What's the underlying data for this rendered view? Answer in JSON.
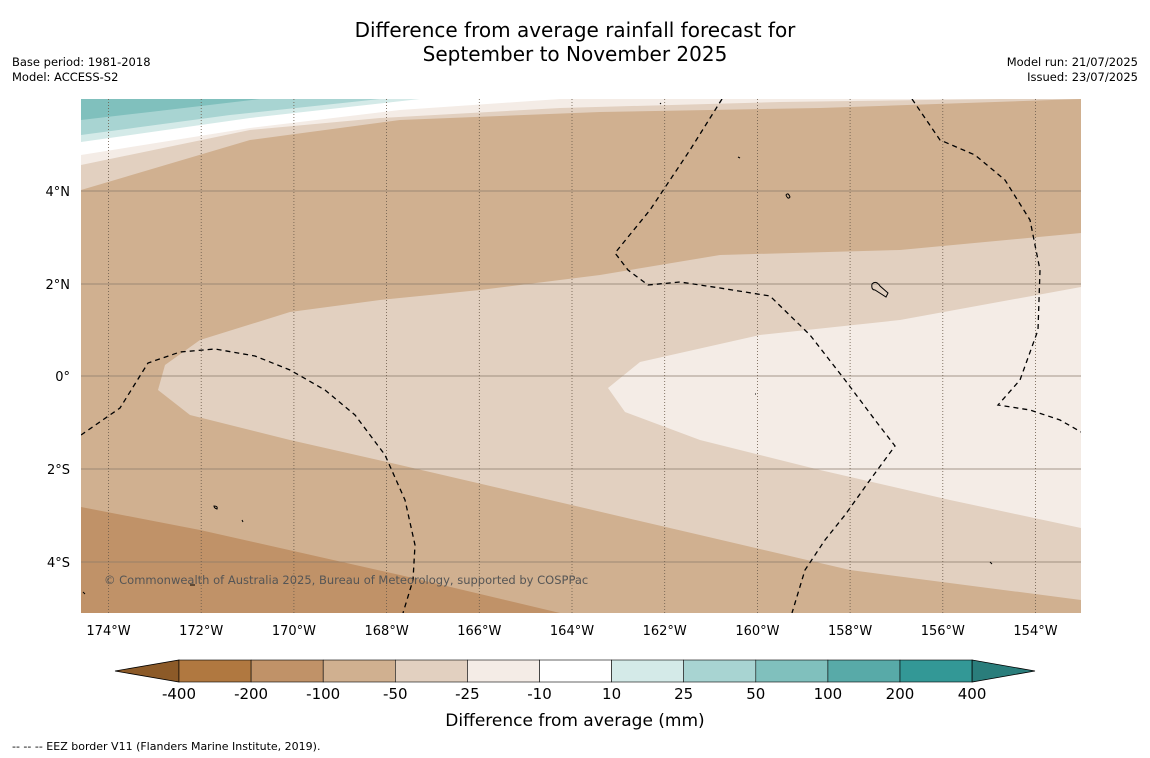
{
  "title": {
    "line1": "Difference from average rainfall forecast for",
    "line2": "September to November 2025"
  },
  "meta_left": {
    "base_period": "Base period: 1981-2018",
    "model": "Model: ACCESS-S2"
  },
  "meta_right": {
    "model_run": "Model run: 21/07/2025",
    "issued": "Issued: 23/07/2025"
  },
  "map": {
    "lat_labels": [
      "4°N",
      "2°N",
      "0°",
      "2°S",
      "4°S"
    ],
    "lon_labels": [
      "174°W",
      "172°W",
      "170°W",
      "168°W",
      "166°W",
      "164°W",
      "162°W",
      "160°W",
      "158°W",
      "156°W",
      "154°W"
    ],
    "copyright": "© Commonwealth of Australia 2025, Bureau of Meteorology, supported by COSPPac"
  },
  "legend": {
    "title": "Difference from average (mm)",
    "ticks": [
      "-400",
      "-200",
      "-100",
      "-50",
      "-25",
      "-10",
      "10",
      "25",
      "50",
      "100",
      "200",
      "400"
    ],
    "colors": [
      "#8c5a28",
      "#b07840",
      "#c09268",
      "#d0b090",
      "#e2d0c0",
      "#f4ece6",
      "#ffffff",
      "#d4eae8",
      "#a8d4d2",
      "#80c0bd",
      "#58aaa8",
      "#339896",
      "#2a7d7b"
    ]
  },
  "footer": "-- -- -- EEZ border V11 (Flanders Marine Institute, 2019)."
}
